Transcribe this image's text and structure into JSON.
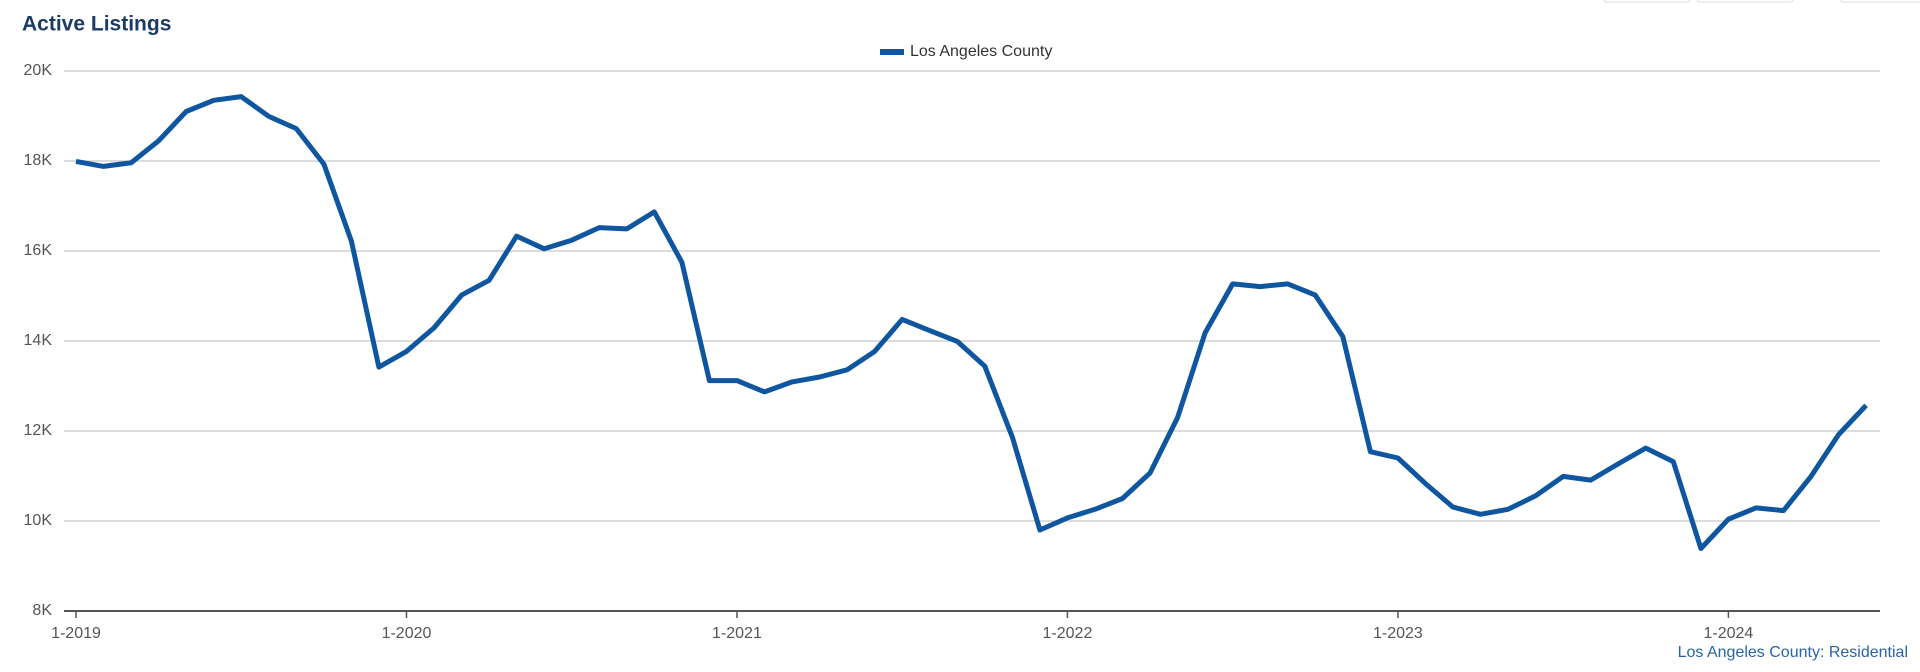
{
  "chart_data": {
    "type": "line",
    "title": "Active Listings",
    "footnote": "Los Angeles County: Residential",
    "categories": [
      "1-2019",
      null,
      null,
      null,
      null,
      null,
      null,
      null,
      null,
      null,
      null,
      null,
      "1-2020",
      null,
      null,
      null,
      null,
      null,
      null,
      null,
      null,
      null,
      null,
      null,
      "1-2021",
      null,
      null,
      null,
      null,
      null,
      null,
      null,
      null,
      null,
      null,
      null,
      "1-2022",
      null,
      null,
      null,
      null,
      null,
      null,
      null,
      null,
      null,
      null,
      null,
      "1-2023",
      null,
      null,
      null,
      null,
      null,
      null,
      null,
      null,
      null,
      null,
      null,
      "1-2024",
      null,
      null,
      null,
      null,
      null
    ],
    "series": [
      {
        "name": "Los Angeles County",
        "color": "#0f56a0",
        "values": [
          17990,
          17880,
          17960,
          18450,
          19100,
          19350,
          19430,
          18990,
          18720,
          17930,
          16220,
          13420,
          13770,
          14290,
          15020,
          15350,
          16330,
          16050,
          16240,
          16520,
          16490,
          16870,
          15750,
          13120,
          13120,
          12870,
          13090,
          13200,
          13360,
          13770,
          14480,
          14230,
          13990,
          13440,
          11860,
          9800,
          10070,
          10260,
          10500,
          11070,
          12300,
          14180,
          15270,
          15210,
          15270,
          15020,
          14100,
          11540,
          11400,
          10830,
          10310,
          10150,
          10260,
          10560,
          10990,
          10910,
          11270,
          11620,
          11320,
          9390,
          10040,
          10290,
          10230,
          10990,
          11920,
          12570
        ]
      }
    ],
    "ylim": [
      8000,
      20000
    ],
    "yticks": [
      {
        "value": 8000,
        "label": "8K"
      },
      {
        "value": 10000,
        "label": "10K"
      },
      {
        "value": 12000,
        "label": "12K"
      },
      {
        "value": 14000,
        "label": "14K"
      },
      {
        "value": 16000,
        "label": "16K"
      },
      {
        "value": 18000,
        "label": "18K"
      },
      {
        "value": 20000,
        "label": "20K"
      }
    ],
    "grid": true,
    "legend": "top"
  }
}
